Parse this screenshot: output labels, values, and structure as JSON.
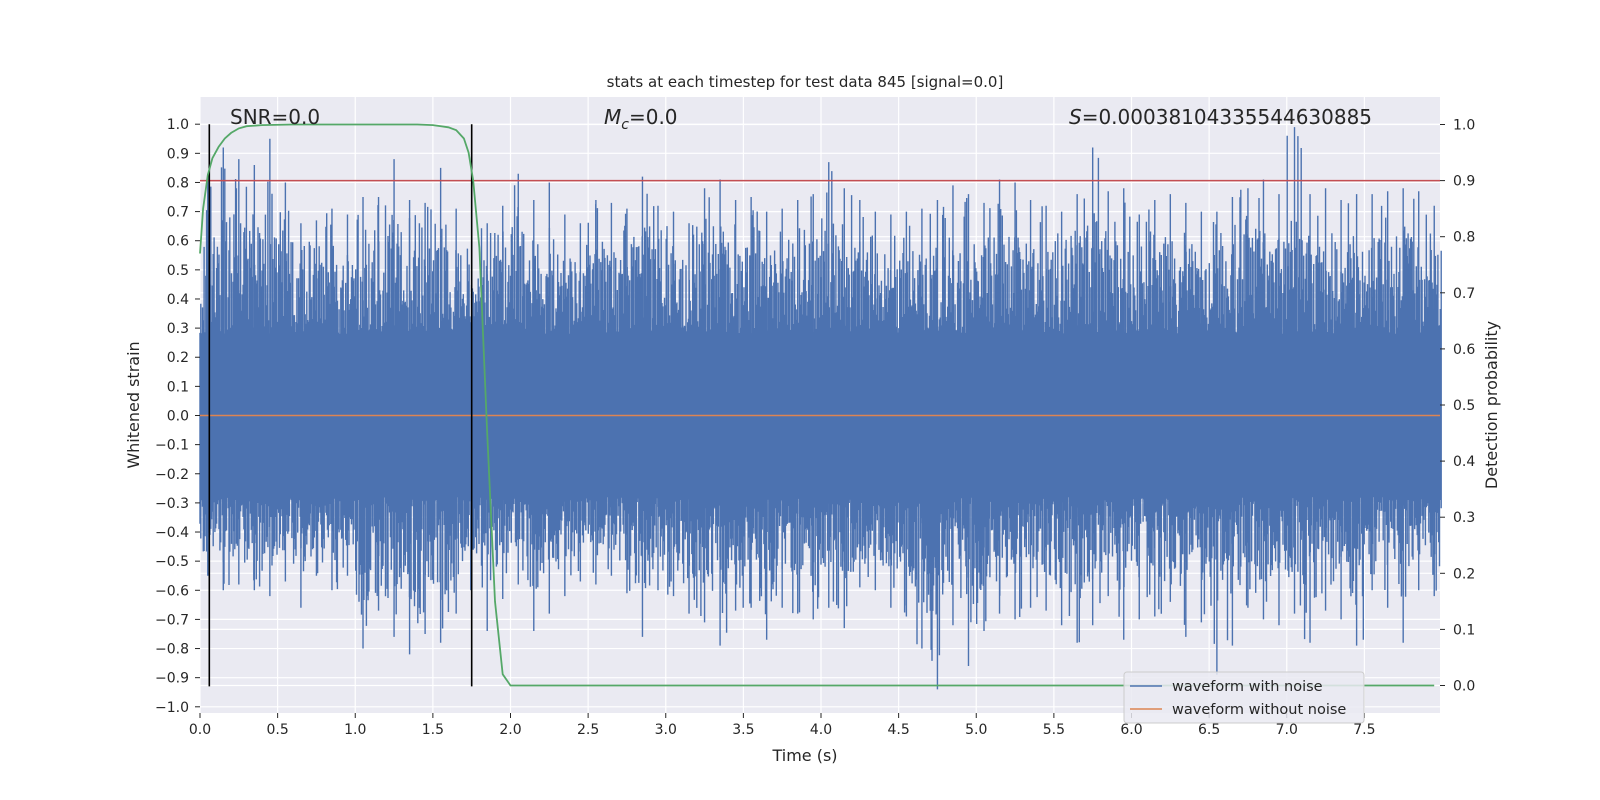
{
  "chart_data": {
    "type": "line",
    "title": "stats at each timestep for test data 845 [signal=0.0]",
    "xlabel": "Time (s)",
    "ylabel_left": "Whitened strain",
    "ylabel_right": "Detection probability",
    "xlim": [
      0.0,
      8.0
    ],
    "ylim_left": [
      -1.05,
      1.05
    ],
    "ylim_right": [
      -0.045,
      1.045
    ],
    "xticks": [
      "0.0",
      "0.5",
      "1.0",
      "1.5",
      "2.0",
      "2.5",
      "3.0",
      "3.5",
      "4.0",
      "4.5",
      "5.0",
      "5.5",
      "6.0",
      "6.5",
      "7.0",
      "7.5"
    ],
    "yticks_left": [
      "1.0",
      "0.9",
      "0.8",
      "0.7",
      "0.6",
      "0.5",
      "0.4",
      "0.3",
      "0.2",
      "0.1",
      "0.0",
      "−0.1",
      "−0.2",
      "−0.3",
      "−0.4",
      "−0.5",
      "−0.6",
      "−0.7",
      "−0.8",
      "−0.9",
      "−1.0"
    ],
    "yticks_right": [
      "1.0",
      "0.9",
      "0.8",
      "0.7",
      "0.6",
      "0.5",
      "0.4",
      "0.3",
      "0.2",
      "0.1",
      "0.0"
    ],
    "grid": true,
    "annotations": {
      "snr": "SNR=0.0",
      "mc_symbol": "M",
      "mc_sub": "c",
      "mc_value": "=0.0",
      "s_symbol": "S",
      "s_value": "=0.00038104335544630885"
    },
    "series": [
      {
        "name": "waveform with noise",
        "color": "#4c72b0",
        "axis": "left",
        "style": "dense noise trace",
        "envelope_top": [
          0.83,
          0.92,
          0.88,
          0.86,
          0.95,
          0.8,
          0.66,
          0.67,
          0.71,
          0.69,
          0.75,
          0.75,
          0.88,
          0.74,
          0.73,
          0.85,
          0.71,
          0.64,
          0.66,
          0.72,
          0.83,
          0.74,
          0.8,
          0.69,
          0.66,
          0.74,
          0.73,
          0.71,
          0.82,
          0.72,
          0.7,
          0.66,
          0.78,
          0.81,
          0.74,
          0.75,
          0.7,
          0.71,
          0.74,
          0.76,
          0.87,
          0.78,
          0.74,
          0.7,
          0.69,
          0.7,
          0.71,
          0.74,
          0.79,
          0.76,
          0.73,
          0.81,
          0.8,
          0.74,
          0.72,
          0.7,
          0.76,
          0.92,
          0.77,
          0.78,
          0.69,
          0.74,
          0.76,
          0.73,
          0.7,
          0.7,
          0.75,
          0.78,
          0.81,
          0.76,
          0.99,
          0.76,
          0.78,
          0.74,
          0.76,
          0.76,
          0.77,
          0.78,
          0.77,
          0.72
        ],
        "envelope_bottom": [
          -0.55,
          -0.6,
          -0.58,
          -0.6,
          -0.62,
          -0.57,
          -0.66,
          -0.55,
          -0.6,
          -0.55,
          -0.8,
          -0.67,
          -0.76,
          -0.82,
          -0.75,
          -0.78,
          -0.68,
          -0.6,
          -0.74,
          -0.63,
          -0.58,
          -0.74,
          -0.68,
          -0.62,
          -0.57,
          -0.58,
          -0.55,
          -0.61,
          -0.76,
          -0.6,
          -0.62,
          -0.68,
          -0.71,
          -0.79,
          -0.67,
          -0.66,
          -0.77,
          -0.66,
          -0.68,
          -0.7,
          -0.66,
          -0.73,
          -0.59,
          -0.6,
          -0.66,
          -0.69,
          -0.8,
          -0.94,
          -0.72,
          -0.86,
          -0.74,
          -0.68,
          -0.7,
          -0.66,
          -0.67,
          -0.72,
          -0.78,
          -0.72,
          -0.62,
          -0.77,
          -0.7,
          -0.69,
          -0.64,
          -0.76,
          -0.71,
          -0.89,
          -0.79,
          -0.66,
          -0.7,
          -0.72,
          -0.68,
          -0.78,
          -0.67,
          -0.7,
          -0.79,
          -0.6,
          -0.66,
          -0.78,
          -0.6,
          -0.62
        ]
      },
      {
        "name": "waveform without noise",
        "color": "#dd8452",
        "axis": "left",
        "x": [
          0.0,
          8.0
        ],
        "y": [
          0.0,
          0.0
        ]
      },
      {
        "name": "",
        "color": "#55a868",
        "axis": "right",
        "x": [
          0.0,
          0.02,
          0.05,
          0.08,
          0.12,
          0.16,
          0.2,
          0.25,
          0.3,
          0.4,
          0.6,
          0.8,
          1.0,
          1.2,
          1.4,
          1.5,
          1.6,
          1.65,
          1.7,
          1.73,
          1.76,
          1.8,
          1.85,
          1.9,
          1.95,
          2.0,
          2.5,
          3.0,
          4.0,
          5.0,
          6.0,
          7.0,
          7.95
        ],
        "y": [
          0.77,
          0.85,
          0.91,
          0.94,
          0.96,
          0.975,
          0.985,
          0.993,
          0.997,
          0.999,
          1.0,
          1.0,
          1.0,
          1.0,
          1.0,
          0.999,
          0.995,
          0.99,
          0.975,
          0.95,
          0.9,
          0.78,
          0.45,
          0.15,
          0.02,
          0.0,
          0.0,
          0.0,
          0.0,
          0.0,
          0.0,
          0.0,
          0.0
        ]
      }
    ],
    "threshold": {
      "axis": "right",
      "value": 0.9,
      "color": "#c44e52"
    },
    "vlines": {
      "x": [
        0.06,
        1.75
      ],
      "y_range": [
        -0.93,
        1.0
      ],
      "color": "#000000"
    },
    "legend": {
      "position": "lower right",
      "entries": [
        {
          "label": "waveform with noise",
          "color": "#4c72b0"
        },
        {
          "label": "waveform without noise",
          "color": "#dd8452"
        }
      ]
    }
  }
}
